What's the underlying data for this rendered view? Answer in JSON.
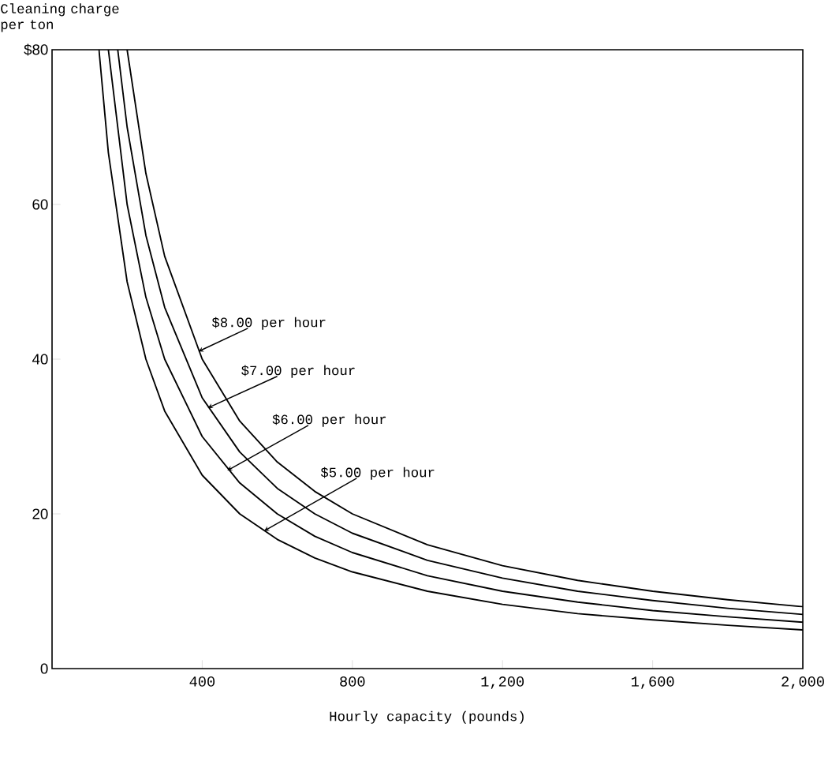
{
  "chart_data": {
    "type": "line",
    "xlabel": "Hourly capacity (pounds)",
    "ylabel": "Cleaning charge per ton",
    "xlim": [
      0,
      2000
    ],
    "ylim": [
      0,
      80
    ],
    "xticks": [
      400,
      800,
      {
        "value": 1200,
        "label": "1,200"
      },
      {
        "value": 1600,
        "label": "1,600"
      },
      {
        "value": 2000,
        "label": "2,000"
      }
    ],
    "yticks": [
      0,
      20,
      40,
      60,
      {
        "value": 80,
        "label": "$80"
      }
    ],
    "series": [
      {
        "color": "#000000",
        "x": [
          125,
          150,
          200,
          250,
          300,
          400,
          500,
          600,
          700,
          800,
          1000,
          1200,
          1400,
          1600,
          1800,
          2000
        ],
        "values": [
          80,
          66.7,
          50,
          40,
          33.3,
          25,
          20,
          16.7,
          14.3,
          12.5,
          10,
          8.3,
          7.1,
          6.3,
          5.6,
          5
        ]
      },
      {
        "color": "#000000",
        "x": [
          150,
          200,
          250,
          300,
          400,
          500,
          600,
          700,
          800,
          1000,
          1200,
          1400,
          1600,
          1800,
          2000
        ],
        "values": [
          80,
          60,
          48,
          40,
          30,
          24,
          20,
          17.1,
          15,
          12,
          10,
          8.6,
          7.5,
          6.7,
          6
        ]
      },
      {
        "color": "#000000",
        "x": [
          175,
          200,
          250,
          300,
          400,
          500,
          600,
          700,
          800,
          1000,
          1200,
          1400,
          1600,
          1800,
          2000
        ],
        "values": [
          80,
          70,
          56,
          46.7,
          35,
          28,
          23.3,
          20,
          17.5,
          14,
          11.7,
          10,
          8.8,
          7.8,
          7
        ]
      },
      {
        "color": "#000000",
        "x": [
          200,
          250,
          300,
          400,
          500,
          600,
          700,
          800,
          1000,
          1200,
          1400,
          1600,
          1800,
          2000
        ],
        "values": [
          80,
          64,
          53.3,
          40,
          32,
          26.7,
          22.9,
          20,
          16,
          13.3,
          11.4,
          10,
          8.9,
          8
        ]
      }
    ],
    "annotations": [
      {
        "text": "$8.00 per hour",
        "x": 390,
        "y": 41
      },
      {
        "text": "$7.00 per hour",
        "x": 415,
        "y": 33.7
      },
      {
        "text": "$6.00 per hour",
        "x": 467,
        "y": 25.6
      },
      {
        "text": "$5.00 per hour",
        "x": 565,
        "y": 17.8
      }
    ]
  }
}
